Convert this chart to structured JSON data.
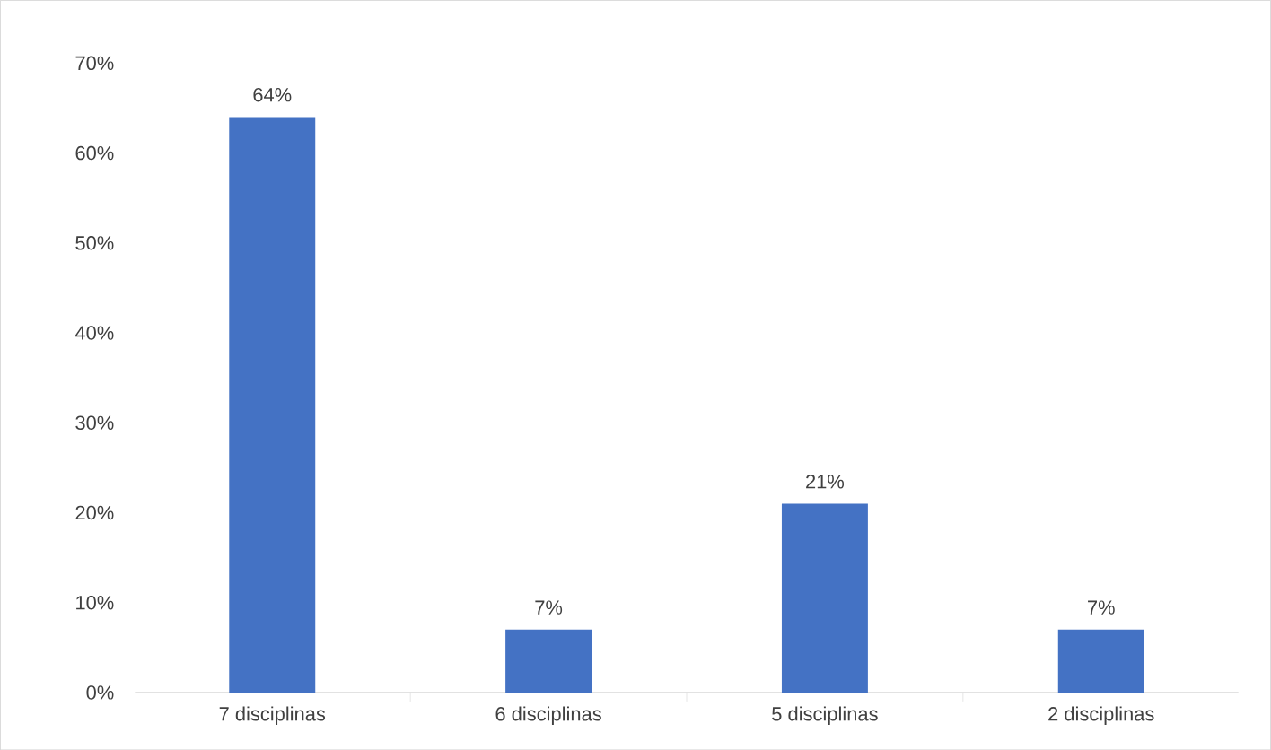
{
  "chart_data": {
    "type": "bar",
    "categories": [
      "7 disciplinas",
      "6 disciplinas",
      "5 disciplinas",
      "2 disciplinas"
    ],
    "values": [
      64,
      7,
      21,
      7
    ],
    "value_labels": [
      "64%",
      "7%",
      "21%",
      "7%"
    ],
    "color": "#4472c4",
    "ylim": [
      0,
      70
    ],
    "yticks": [
      {
        "value": 0,
        "label": "0%"
      },
      {
        "value": 10,
        "label": "10%"
      },
      {
        "value": 20,
        "label": "20%"
      },
      {
        "value": 30,
        "label": "30%"
      },
      {
        "value": 40,
        "label": "40%"
      },
      {
        "value": 50,
        "label": "50%"
      },
      {
        "value": 60,
        "label": "60%"
      },
      {
        "value": 70,
        "label": "70%"
      }
    ]
  }
}
